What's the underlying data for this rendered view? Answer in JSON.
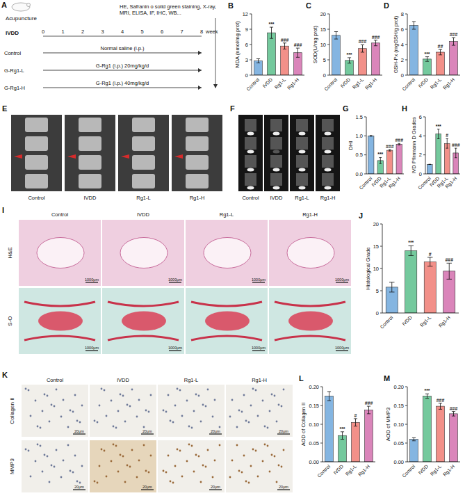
{
  "diagram": {
    "panel": "A",
    "model": "IVDD",
    "procedure": "Acupuncture",
    "assays": "HE, Safranin o solid green staining, X-ray, MRI, ELISA, IF, IHC, WB...",
    "timeline": [
      0,
      1,
      2,
      3,
      4,
      5,
      6,
      7,
      8
    ],
    "timeline_unit": "week",
    "groups": [
      {
        "name": "Control",
        "treatment": "Normal saline (i.p.)"
      },
      {
        "name": "G-Rg1-L",
        "treatment": "G-Rg1 (i.p.) 20mg/kg/d"
      },
      {
        "name": "G-Rg1-H",
        "treatment": "G-Rg1 (i.p.) 40mg/kg/d"
      }
    ]
  },
  "images": [
    {
      "panel": "E",
      "columns": [
        "Control",
        "IVDD",
        "Rg1-L",
        "Rg1-H"
      ]
    },
    {
      "panel": "F",
      "columns": [
        "Control",
        "IVDD",
        "Rg1-L",
        "Rg1-H"
      ]
    },
    {
      "panel": "I",
      "columns": [
        "Control",
        "IVDD",
        "Rg1-L",
        "Rg1-H"
      ],
      "rows": [
        "H&E",
        "S-O"
      ],
      "scale_bar": "1000μm"
    },
    {
      "panel": "K",
      "columns": [
        "Control",
        "IVDD",
        "Rg1-L",
        "Rg1-H"
      ],
      "rows": [
        "Collagen II",
        "MMP3"
      ],
      "scale_bar": "20μm"
    }
  ],
  "chart_data": [
    {
      "type": "bar",
      "panel": "B",
      "y_label": "MDA (nmol/mg prot)",
      "categories": [
        "Control",
        "IVDD",
        "Rg1-L",
        "Rg1-H"
      ],
      "values": [
        2.8,
        8.3,
        5.7,
        4.4
      ],
      "errors": [
        0.4,
        1.1,
        0.6,
        0.9
      ],
      "significance": [
        null,
        "***",
        "###",
        "###"
      ],
      "colors": [
        "#6ea8dc",
        "#5cc08c",
        "#f07c74",
        "#d470ae"
      ],
      "ylim": [
        0,
        12
      ],
      "yticks": [
        0,
        3,
        6,
        9,
        12
      ]
    },
    {
      "type": "bar",
      "panel": "C",
      "y_label": "SOD(U/mg prot)",
      "categories": [
        "Control",
        "IVDD",
        "Rg1-L",
        "Rg1-H"
      ],
      "values": [
        13,
        4.8,
        8.7,
        10.5
      ],
      "errors": [
        1.2,
        0.9,
        1.2,
        0.9
      ],
      "significance": [
        null,
        "***",
        "###",
        "###"
      ],
      "colors": [
        "#6ea8dc",
        "#5cc08c",
        "#f07c74",
        "#d470ae"
      ],
      "ylim": [
        0,
        20
      ],
      "yticks": [
        0,
        5,
        10,
        15,
        20
      ]
    },
    {
      "type": "bar",
      "panel": "D",
      "y_label": "GSH-Px (mgGSH/g prot)",
      "categories": [
        "Control",
        "IVDD",
        "Rg1-L",
        "Rg1-H"
      ],
      "values": [
        6.5,
        2.1,
        3.0,
        4.4
      ],
      "errors": [
        0.5,
        0.3,
        0.35,
        0.5
      ],
      "significance": [
        null,
        "***",
        "##",
        "###"
      ],
      "colors": [
        "#6ea8dc",
        "#5cc08c",
        "#f07c74",
        "#d470ae"
      ],
      "ylim": [
        0,
        8
      ],
      "yticks": [
        0,
        2,
        4,
        6,
        8
      ]
    },
    {
      "type": "bar",
      "panel": "G",
      "y_label": "DHI",
      "categories": [
        "Control",
        "IVDD",
        "Rg1-L",
        "Rg1-H"
      ],
      "values": [
        1.0,
        0.35,
        0.62,
        0.78
      ],
      "errors": [
        0.01,
        0.08,
        0.02,
        0.02
      ],
      "significance": [
        null,
        "***",
        "###",
        "###"
      ],
      "colors": [
        "#6ea8dc",
        "#5cc08c",
        "#f07c74",
        "#d470ae"
      ],
      "ylim": [
        0,
        1.5
      ],
      "yticks": [
        {
          "value": 0,
          "label": "0.0"
        },
        {
          "value": 0.5,
          "label": "0.5"
        },
        {
          "value": 1,
          "label": "1.0"
        },
        {
          "value": 1.5,
          "label": "1.5"
        }
      ]
    },
    {
      "type": "bar",
      "panel": "H",
      "y_label": "IVD Pfirrmann D Grades",
      "categories": [
        "Control",
        "IVDD",
        "Rg1-L",
        "Rg1-H"
      ],
      "values": [
        1,
        4.2,
        3.2,
        2.2
      ],
      "errors": [
        0,
        0.5,
        0.5,
        0.5
      ],
      "significance": [
        null,
        "***",
        "#",
        "###"
      ],
      "colors": [
        "#6ea8dc",
        "#5cc08c",
        "#f07c74",
        "#d470ae"
      ],
      "ylim": [
        0,
        6
      ],
      "yticks": [
        0,
        2,
        4,
        6
      ]
    },
    {
      "type": "bar",
      "panel": "J",
      "y_label": "Histological Grade",
      "categories": [
        "Control",
        "IVDD",
        "Rg1-L",
        "Rg1-H"
      ],
      "values": [
        5.8,
        14,
        11.5,
        9.4
      ],
      "errors": [
        1.1,
        1.1,
        1.0,
        1.8
      ],
      "significance": [
        null,
        "***",
        "#",
        "###"
      ],
      "colors": [
        "#6ea8dc",
        "#5cc08c",
        "#f07c74",
        "#d470ae"
      ],
      "ylim": [
        0,
        20
      ],
      "yticks": [
        0,
        5,
        10,
        15,
        20
      ]
    },
    {
      "type": "bar",
      "panel": "L",
      "y_label": "AOD of Collagen II",
      "categories": [
        "Control",
        "IVDD",
        "Rg1-L",
        "Rg1-H"
      ],
      "values": [
        0.175,
        0.07,
        0.105,
        0.138
      ],
      "errors": [
        0.012,
        0.01,
        0.01,
        0.01
      ],
      "significance": [
        null,
        "***",
        "#",
        "###"
      ],
      "colors": [
        "#6ea8dc",
        "#5cc08c",
        "#f07c74",
        "#d470ae"
      ],
      "ylim": [
        0,
        0.2
      ],
      "yticks": [
        {
          "value": 0,
          "label": "0.00"
        },
        {
          "value": 0.05,
          "label": "0.05"
        },
        {
          "value": 0.1,
          "label": "0.10"
        },
        {
          "value": 0.15,
          "label": "0.15"
        },
        {
          "value": 0.2,
          "label": "0.20"
        }
      ]
    },
    {
      "type": "bar",
      "panel": "M",
      "y_label": "AOD of MMP3",
      "categories": [
        "Control",
        "IVDD",
        "Rg1-L",
        "Rg1-H"
      ],
      "values": [
        0.06,
        0.175,
        0.148,
        0.128
      ],
      "errors": [
        0.004,
        0.006,
        0.008,
        0.006
      ],
      "significance": [
        null,
        "***",
        "###",
        "###"
      ],
      "colors": [
        "#6ea8dc",
        "#5cc08c",
        "#f07c74",
        "#d470ae"
      ],
      "ylim": [
        0,
        0.2
      ],
      "yticks": [
        {
          "value": 0,
          "label": "0.00"
        },
        {
          "value": 0.05,
          "label": "0.05"
        },
        {
          "value": 0.1,
          "label": "0.10"
        },
        {
          "value": 0.15,
          "label": "0.15"
        },
        {
          "value": 0.2,
          "label": "0.20"
        }
      ]
    }
  ]
}
